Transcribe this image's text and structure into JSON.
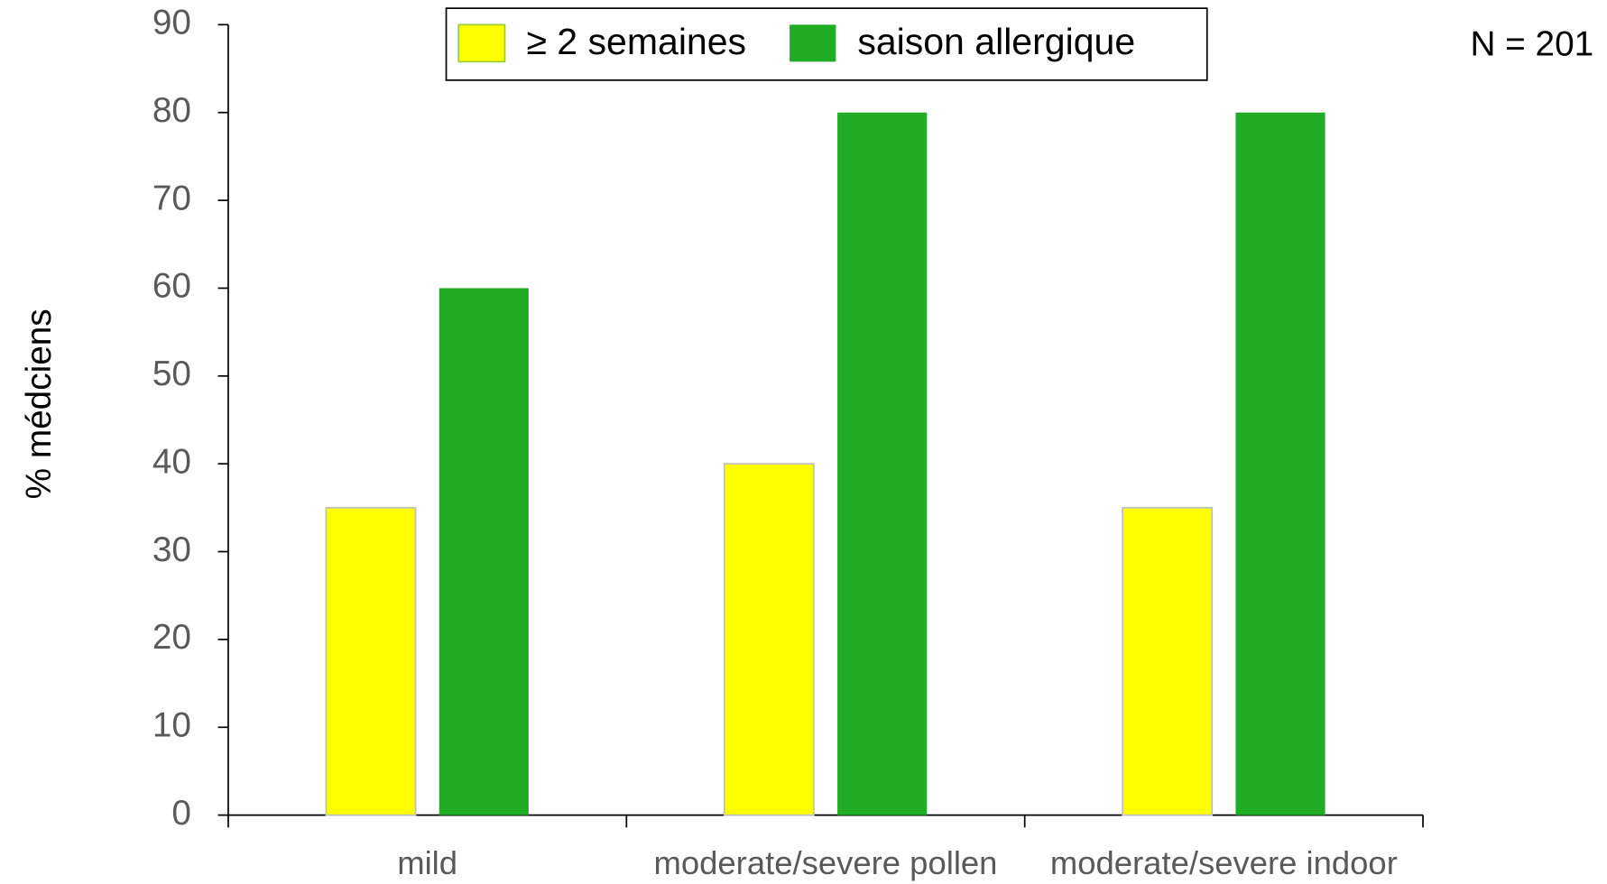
{
  "chart_data": {
    "type": "bar",
    "y_label": "% médciens",
    "annotation": "N = 201",
    "categories": [
      "mild",
      "moderate/severe pollen",
      "moderate/severe indoor"
    ],
    "series": [
      {
        "name": "≥ 2 semaines",
        "color": "#ffff00",
        "values": [
          35,
          40,
          35
        ]
      },
      {
        "name": "saison allergique",
        "color": "#21ac26",
        "values": [
          60,
          80,
          80
        ]
      }
    ],
    "ylim": [
      0,
      90
    ],
    "yticks": [
      0,
      10,
      20,
      30,
      40,
      50,
      60,
      70,
      80,
      90
    ],
    "legend": "top"
  }
}
